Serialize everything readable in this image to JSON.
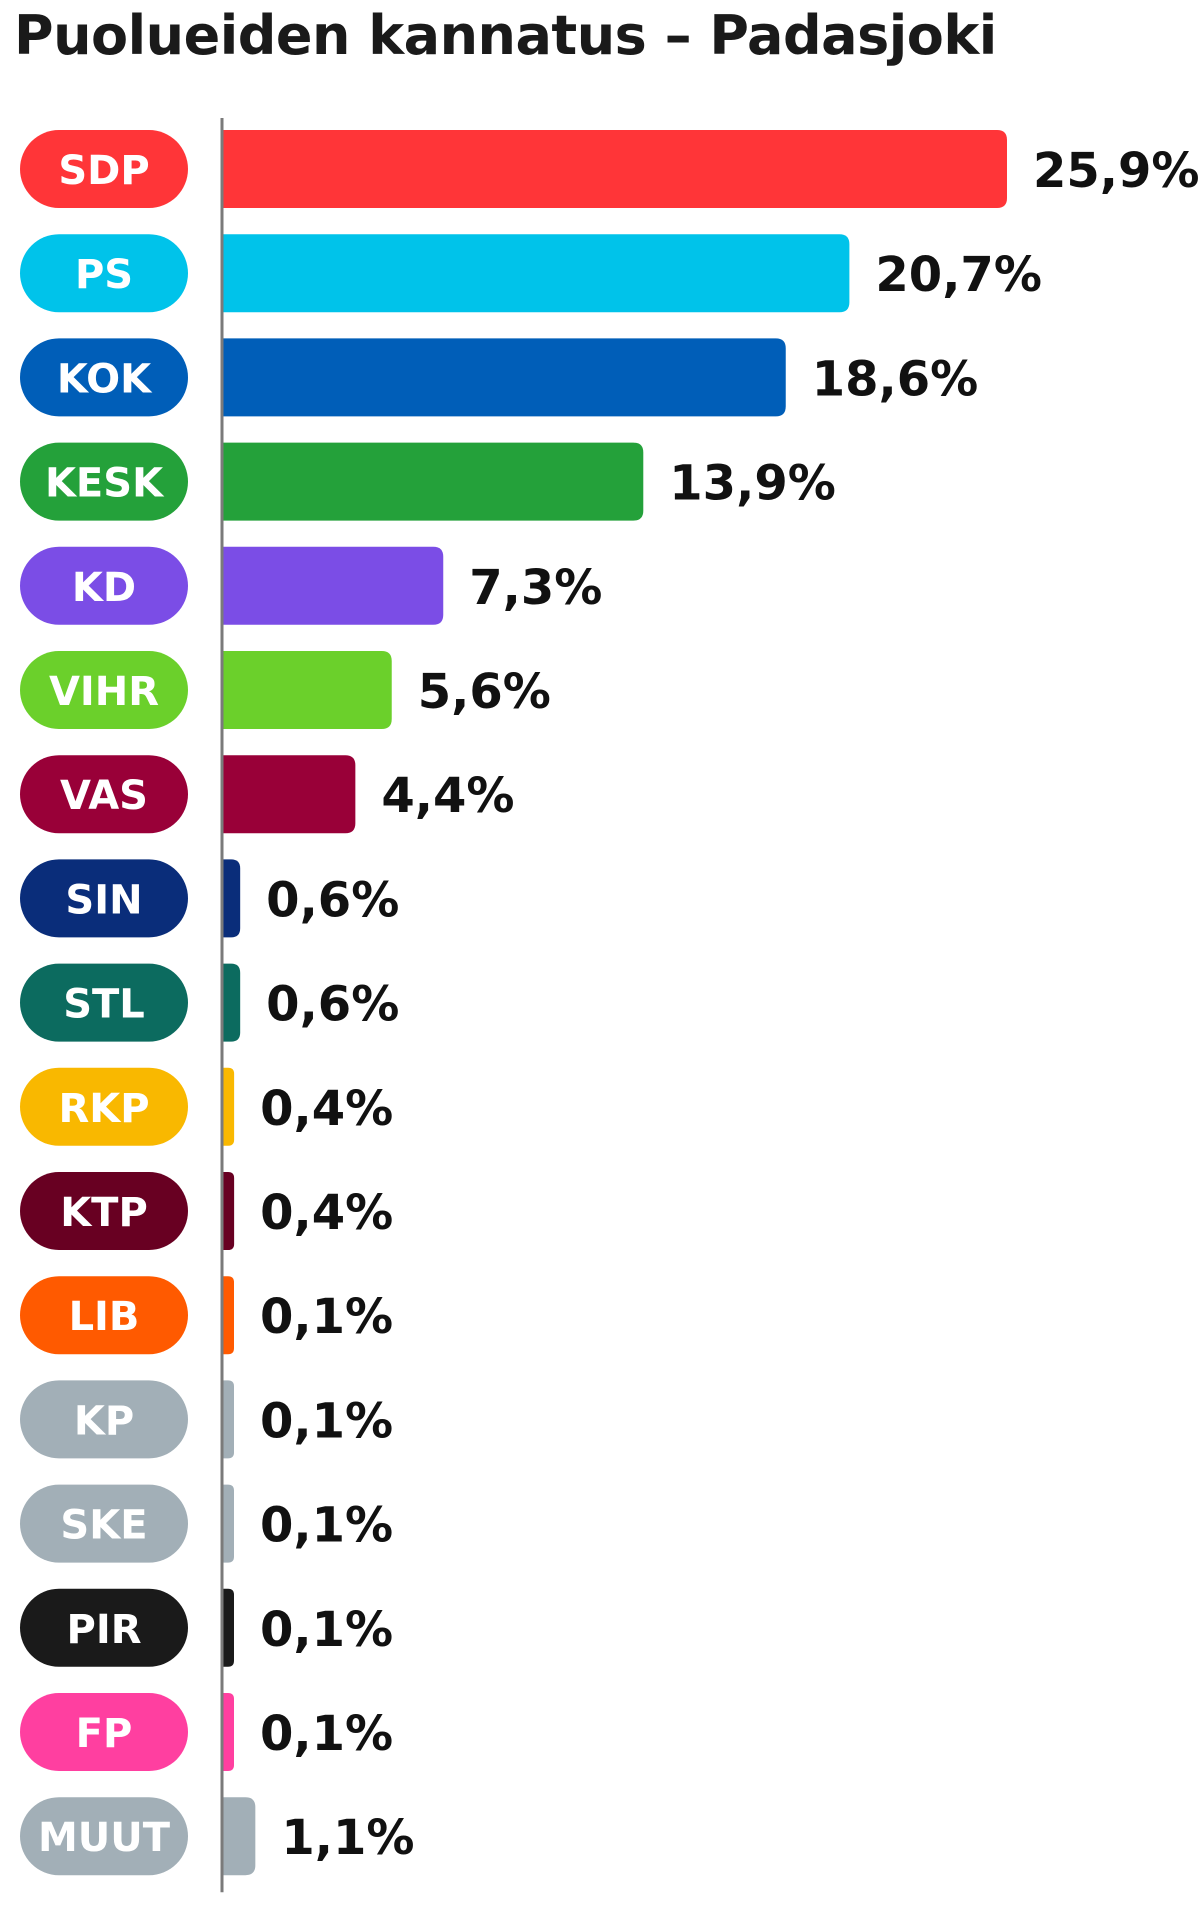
{
  "chart_data": {
    "type": "bar",
    "orientation": "horizontal",
    "title": "Puolueiden kannatus – Padasjoki",
    "xlim": [
      0,
      25.9
    ],
    "grid": false,
    "categories": [
      "SDP",
      "PS",
      "KOK",
      "KESK",
      "KD",
      "VIHR",
      "VAS",
      "SIN",
      "STL",
      "RKP",
      "KTP",
      "LIB",
      "KP",
      "SKE",
      "PIR",
      "FP",
      "MUUT"
    ],
    "values": [
      25.9,
      20.7,
      18.6,
      13.9,
      7.3,
      5.6,
      4.4,
      0.6,
      0.6,
      0.4,
      0.4,
      0.1,
      0.1,
      0.1,
      0.1,
      0.1,
      1.1
    ],
    "value_labels": [
      "25,9%",
      "20,7%",
      "18,6%",
      "13,9%",
      "7,3%",
      "5,6%",
      "4,4%",
      "0,6%",
      "0,6%",
      "0,4%",
      "0,4%",
      "0,1%",
      "0,1%",
      "0,1%",
      "0,1%",
      "0,1%",
      "1,1%"
    ],
    "colors": [
      "#FF3538",
      "#00C3EA",
      "#005EB8",
      "#24A13A",
      "#7B4DE6",
      "#6BD02B",
      "#990038",
      "#0A2D7A",
      "#0C6B5F",
      "#F9B800",
      "#680022",
      "#FF5A00",
      "#A2AFB7",
      "#A2AFB7",
      "#1A1A1A",
      "#FF3FA0",
      "#A2AFB7"
    ]
  }
}
